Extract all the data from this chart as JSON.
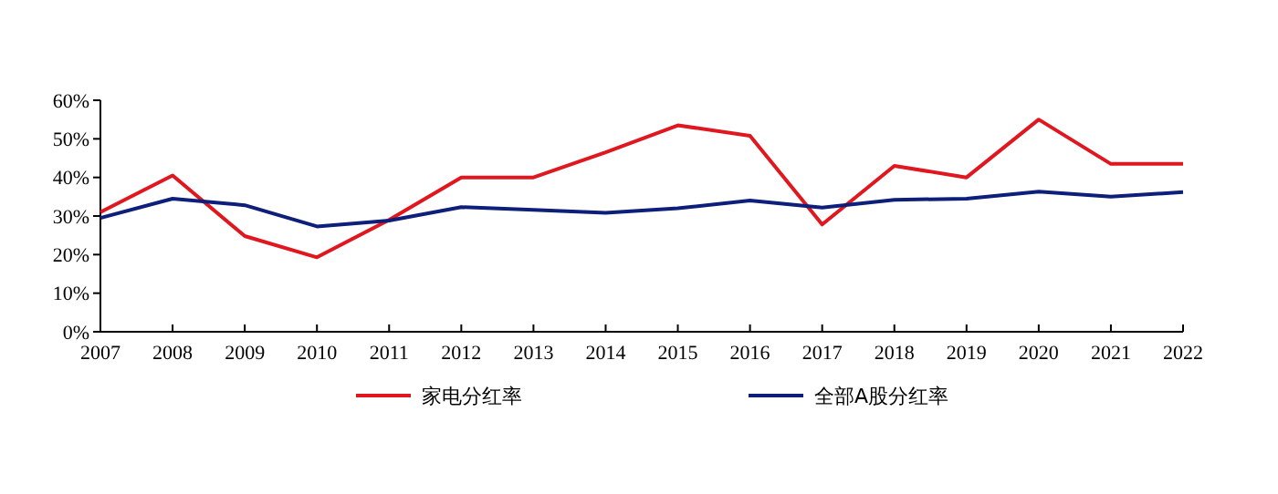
{
  "chart_data": {
    "type": "line",
    "categories": [
      "2007",
      "2008",
      "2009",
      "2010",
      "2011",
      "2012",
      "2013",
      "2014",
      "2015",
      "2016",
      "2017",
      "2018",
      "2019",
      "2020",
      "2021",
      "2022"
    ],
    "series": [
      {
        "name": "家电分红率",
        "color": "#e0171e",
        "values": [
          31,
          40.5,
          24.8,
          19.3,
          29,
          40,
          40,
          46.5,
          53.5,
          50.8,
          27.8,
          43,
          40,
          55,
          43.5,
          43.5
        ]
      },
      {
        "name": "全部A股分红率",
        "color": "#0d1f7a",
        "values": [
          29.5,
          34.5,
          32.8,
          27.3,
          28.8,
          32.3,
          31.6,
          30.8,
          32,
          34,
          32.2,
          34.2,
          34.5,
          36.3,
          35,
          36.2
        ]
      }
    ],
    "ylim": [
      0,
      60
    ],
    "yticks": [
      {
        "value": 0,
        "label": "0%"
      },
      {
        "value": 10,
        "label": "10%"
      },
      {
        "value": 20,
        "label": "20%"
      },
      {
        "value": 30,
        "label": "30%"
      },
      {
        "value": 40,
        "label": "40%"
      },
      {
        "value": 50,
        "label": "50%"
      },
      {
        "value": 60,
        "label": "60%"
      }
    ],
    "legend": "bottom",
    "marker": "none",
    "line_style": "solid"
  }
}
